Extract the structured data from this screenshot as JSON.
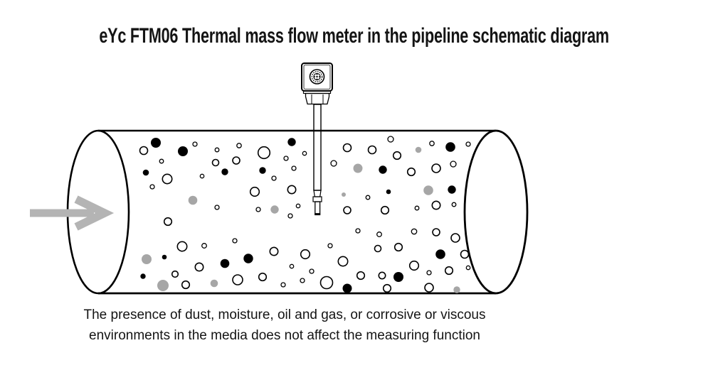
{
  "title": "eYc FTM06 Thermal mass flow meter in the pipeline schematic diagram",
  "caption": {
    "line1": "The presence of dust, moisture, oil and gas, or corrosive or viscous",
    "line2": "environments in the media does not affect the measuring function"
  },
  "colors": {
    "background": "#ffffff",
    "line": "#000000",
    "text": "#141414",
    "particle_gray": "#a6a6a6",
    "flow_arrow": "#b4b4b4"
  },
  "diagram": {
    "flow_direction": "left-to-right",
    "particles": [
      [
        202,
        212,
        5.5,
        "o"
      ],
      [
        219,
        201,
        7,
        "b"
      ],
      [
        257,
        213,
        7,
        "b"
      ],
      [
        274,
        203,
        3,
        "o"
      ],
      [
        305,
        211,
        2.8,
        "o"
      ],
      [
        227,
        227,
        2.8,
        "o"
      ],
      [
        303,
        229,
        4.5,
        "o"
      ],
      [
        332,
        226,
        5,
        "o"
      ],
      [
        336,
        205,
        3.2,
        "o"
      ],
      [
        371,
        215,
        8.3,
        "o"
      ],
      [
        410,
        200,
        5.7,
        "b"
      ],
      [
        402,
        223,
        3,
        "o"
      ],
      [
        428,
        216,
        2.7,
        "o"
      ],
      [
        488,
        208,
        5.5,
        "o"
      ],
      [
        523,
        211,
        5.5,
        "o"
      ],
      [
        549,
        196,
        4,
        "o"
      ],
      [
        558,
        219,
        5.3,
        "o"
      ],
      [
        588,
        211,
        4.3,
        "g"
      ],
      [
        607,
        202,
        3.2,
        "o"
      ],
      [
        633,
        207,
        6.8,
        "b"
      ],
      [
        658,
        203,
        3,
        "o"
      ],
      [
        469,
        230,
        4,
        "o"
      ],
      [
        637,
        231,
        4,
        "o"
      ],
      [
        205,
        243,
        4.3,
        "b"
      ],
      [
        316,
        242,
        4.7,
        "b"
      ],
      [
        235,
        252,
        6.7,
        "o"
      ],
      [
        214,
        263,
        3,
        "o"
      ],
      [
        284,
        248,
        2.7,
        "o"
      ],
      [
        369,
        240,
        4.7,
        "b"
      ],
      [
        413,
        237,
        3,
        "o"
      ],
      [
        385,
        251,
        3,
        "o"
      ],
      [
        503,
        237,
        6.5,
        "g"
      ],
      [
        538,
        239,
        5.7,
        "b"
      ],
      [
        578,
        242,
        5.3,
        "o"
      ],
      [
        613,
        237,
        6,
        "o"
      ],
      [
        271,
        282,
        6.3,
        "g"
      ],
      [
        305,
        292,
        3,
        "o"
      ],
      [
        358,
        270,
        6.3,
        "o"
      ],
      [
        410,
        267,
        5.7,
        "o"
      ],
      [
        483,
        274,
        3,
        "g"
      ],
      [
        386,
        295,
        5.7,
        "g"
      ],
      [
        363,
        295,
        3,
        "o"
      ],
      [
        419,
        290,
        2.7,
        "o"
      ],
      [
        546,
        270,
        3.3,
        "b"
      ],
      [
        602,
        268,
        6.8,
        "g"
      ],
      [
        635,
        267,
        5.7,
        "b"
      ],
      [
        517,
        278,
        2.8,
        "o"
      ],
      [
        613,
        289,
        5.7,
        "o"
      ],
      [
        638,
        288,
        2.8,
        "o"
      ],
      [
        586,
        293,
        2.8,
        "o"
      ],
      [
        488,
        296,
        5,
        "o"
      ],
      [
        541,
        296,
        5.3,
        "o"
      ],
      [
        236,
        312,
        5.3,
        "o"
      ],
      [
        408,
        304,
        3,
        "o"
      ],
      [
        256,
        347,
        6.7,
        "o"
      ],
      [
        287,
        346,
        3.3,
        "o"
      ],
      [
        330,
        339,
        3,
        "o"
      ],
      [
        503,
        325,
        3,
        "o"
      ],
      [
        533,
        330,
        3.3,
        "o"
      ],
      [
        582,
        326,
        3.7,
        "o"
      ],
      [
        613,
        327,
        5,
        "o"
      ],
      [
        640,
        335,
        6,
        "o"
      ],
      [
        531,
        350,
        4.5,
        "o"
      ],
      [
        560,
        348,
        5.3,
        "o"
      ],
      [
        464,
        346,
        3,
        "o"
      ],
      [
        206,
        365,
        7,
        "g"
      ],
      [
        231,
        362,
        3.3,
        "b"
      ],
      [
        280,
        376,
        5.7,
        "o"
      ],
      [
        316,
        371,
        6.3,
        "b"
      ],
      [
        201,
        389,
        3.7,
        "b"
      ],
      [
        246,
        386,
        4.3,
        "o"
      ],
      [
        385,
        354,
        5.7,
        "o"
      ],
      [
        349,
        364,
        6.7,
        "b"
      ],
      [
        429,
        358,
        6.3,
        "o"
      ],
      [
        410,
        375,
        2.7,
        "o"
      ],
      [
        369,
        390,
        5.3,
        "o"
      ],
      [
        438,
        382,
        3,
        "o"
      ],
      [
        482,
        368,
        6.7,
        "o"
      ],
      [
        619,
        358,
        6.8,
        "b"
      ],
      [
        653,
        358,
        5.5,
        "o"
      ],
      [
        582,
        374,
        6.3,
        "o"
      ],
      [
        658,
        377,
        2.7,
        "o"
      ],
      [
        507,
        388,
        5.3,
        "o"
      ],
      [
        537,
        388,
        4.7,
        "o"
      ],
      [
        560,
        390,
        7,
        "b"
      ],
      [
        603,
        384,
        3,
        "o"
      ],
      [
        631,
        381,
        5.3,
        "o"
      ],
      [
        229,
        402,
        8,
        "g"
      ],
      [
        261,
        401,
        5.3,
        "o"
      ],
      [
        301,
        399,
        5.3,
        "g"
      ],
      [
        334,
        394,
        7,
        "o"
      ],
      [
        425,
        395,
        3,
        "o"
      ],
      [
        398,
        401,
        3,
        "o"
      ],
      [
        459,
        398,
        8.5,
        "o"
      ],
      [
        488,
        406,
        6.5,
        "b"
      ],
      [
        544,
        406,
        5.3,
        "o"
      ],
      [
        603,
        405,
        6,
        "o"
      ],
      [
        642,
        408,
        4.7,
        "g"
      ]
    ]
  }
}
